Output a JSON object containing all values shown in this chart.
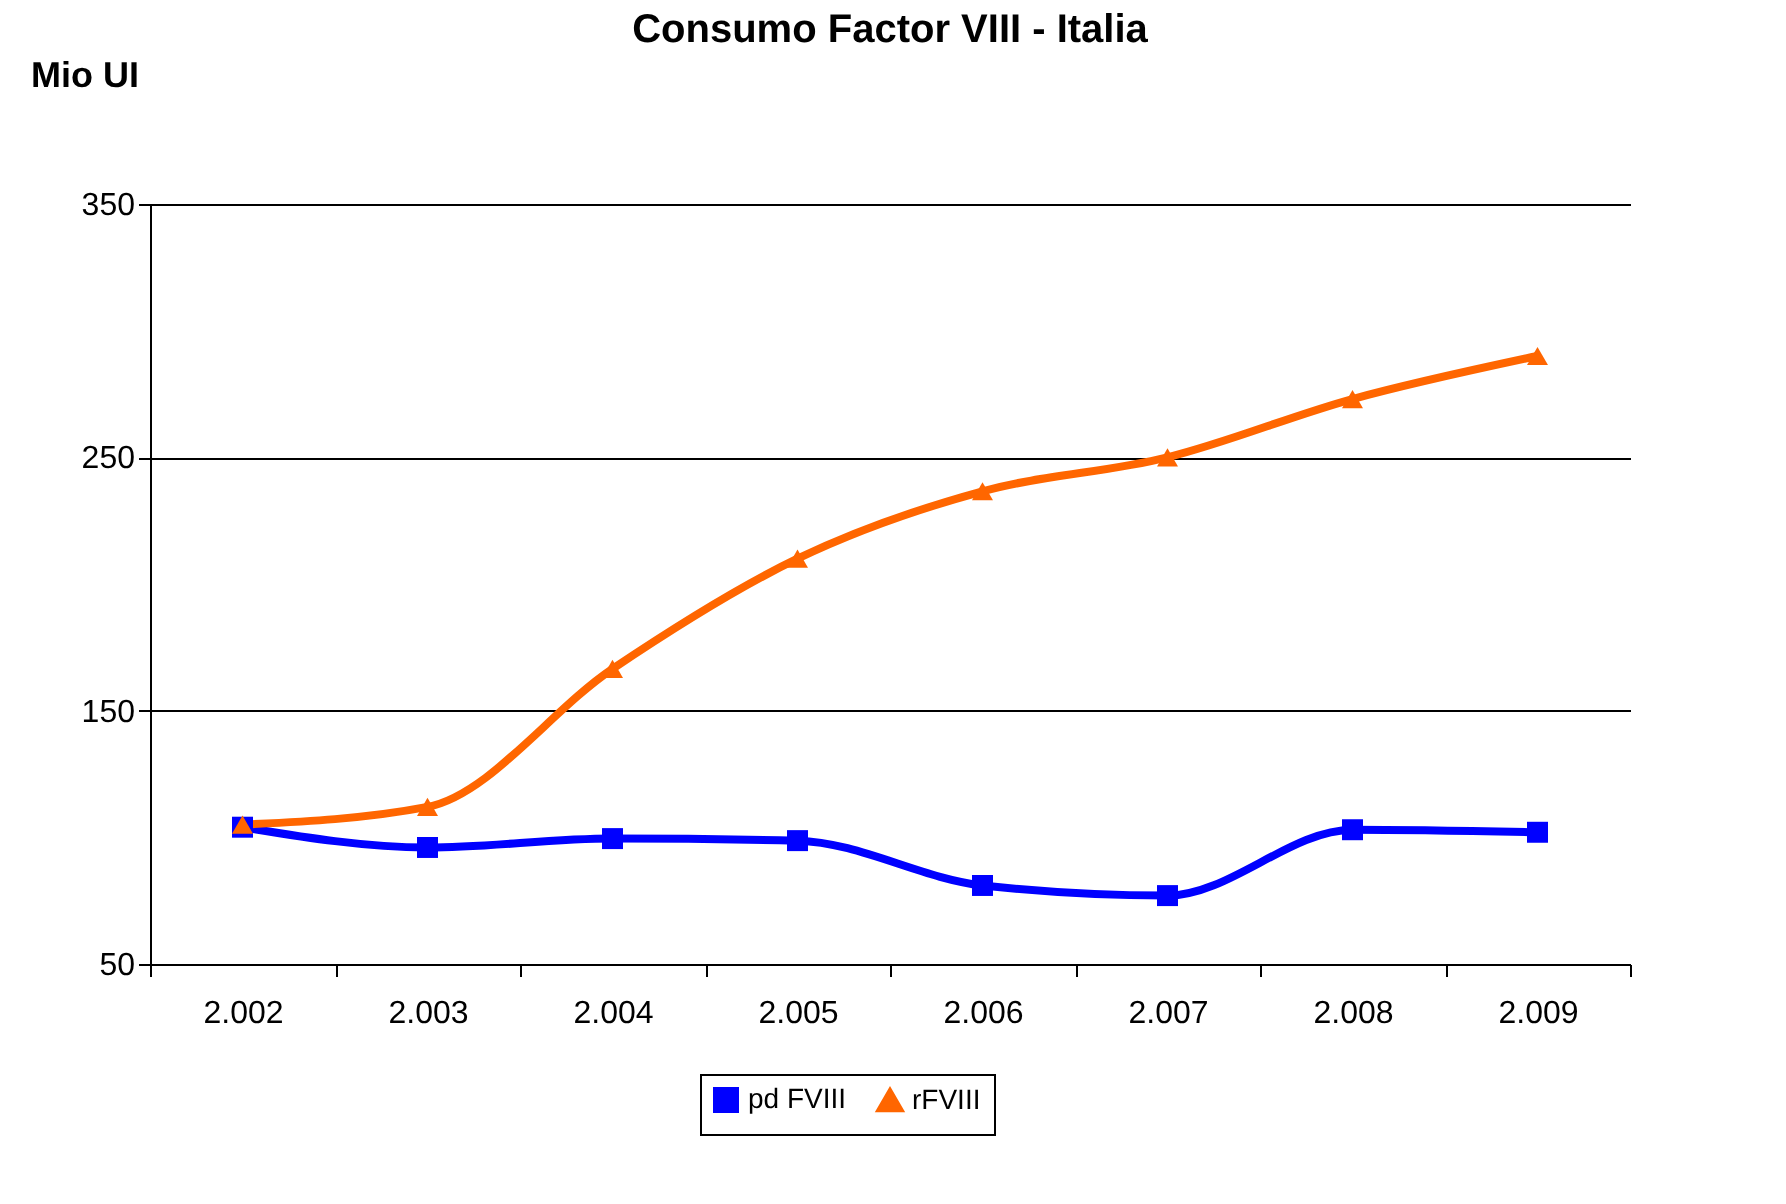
{
  "chart_data": {
    "type": "line",
    "title": "Consumo Factor VIII - Italia",
    "ylabel": "Mio UI",
    "categories": [
      "2.002",
      "2.003",
      "2.004",
      "2.005",
      "2.006",
      "2.007",
      "2.008",
      "2.009"
    ],
    "series": [
      {
        "name": "pd FVIII",
        "color": "#0000ff",
        "marker": "square",
        "values": [
          104,
          96,
          99.5,
          98.7,
          81,
          77,
          103,
          102
        ]
      },
      {
        "name": "rFVIII",
        "color": "#ff6600",
        "marker": "triangle",
        "values": [
          105,
          112,
          166.5,
          210,
          236.6,
          250,
          273,
          290
        ]
      }
    ],
    "ylim": [
      50,
      350
    ],
    "yticks": [
      50,
      150,
      250,
      350
    ],
    "grid": "y",
    "legend": "bottom",
    "line_style": "solid"
  }
}
